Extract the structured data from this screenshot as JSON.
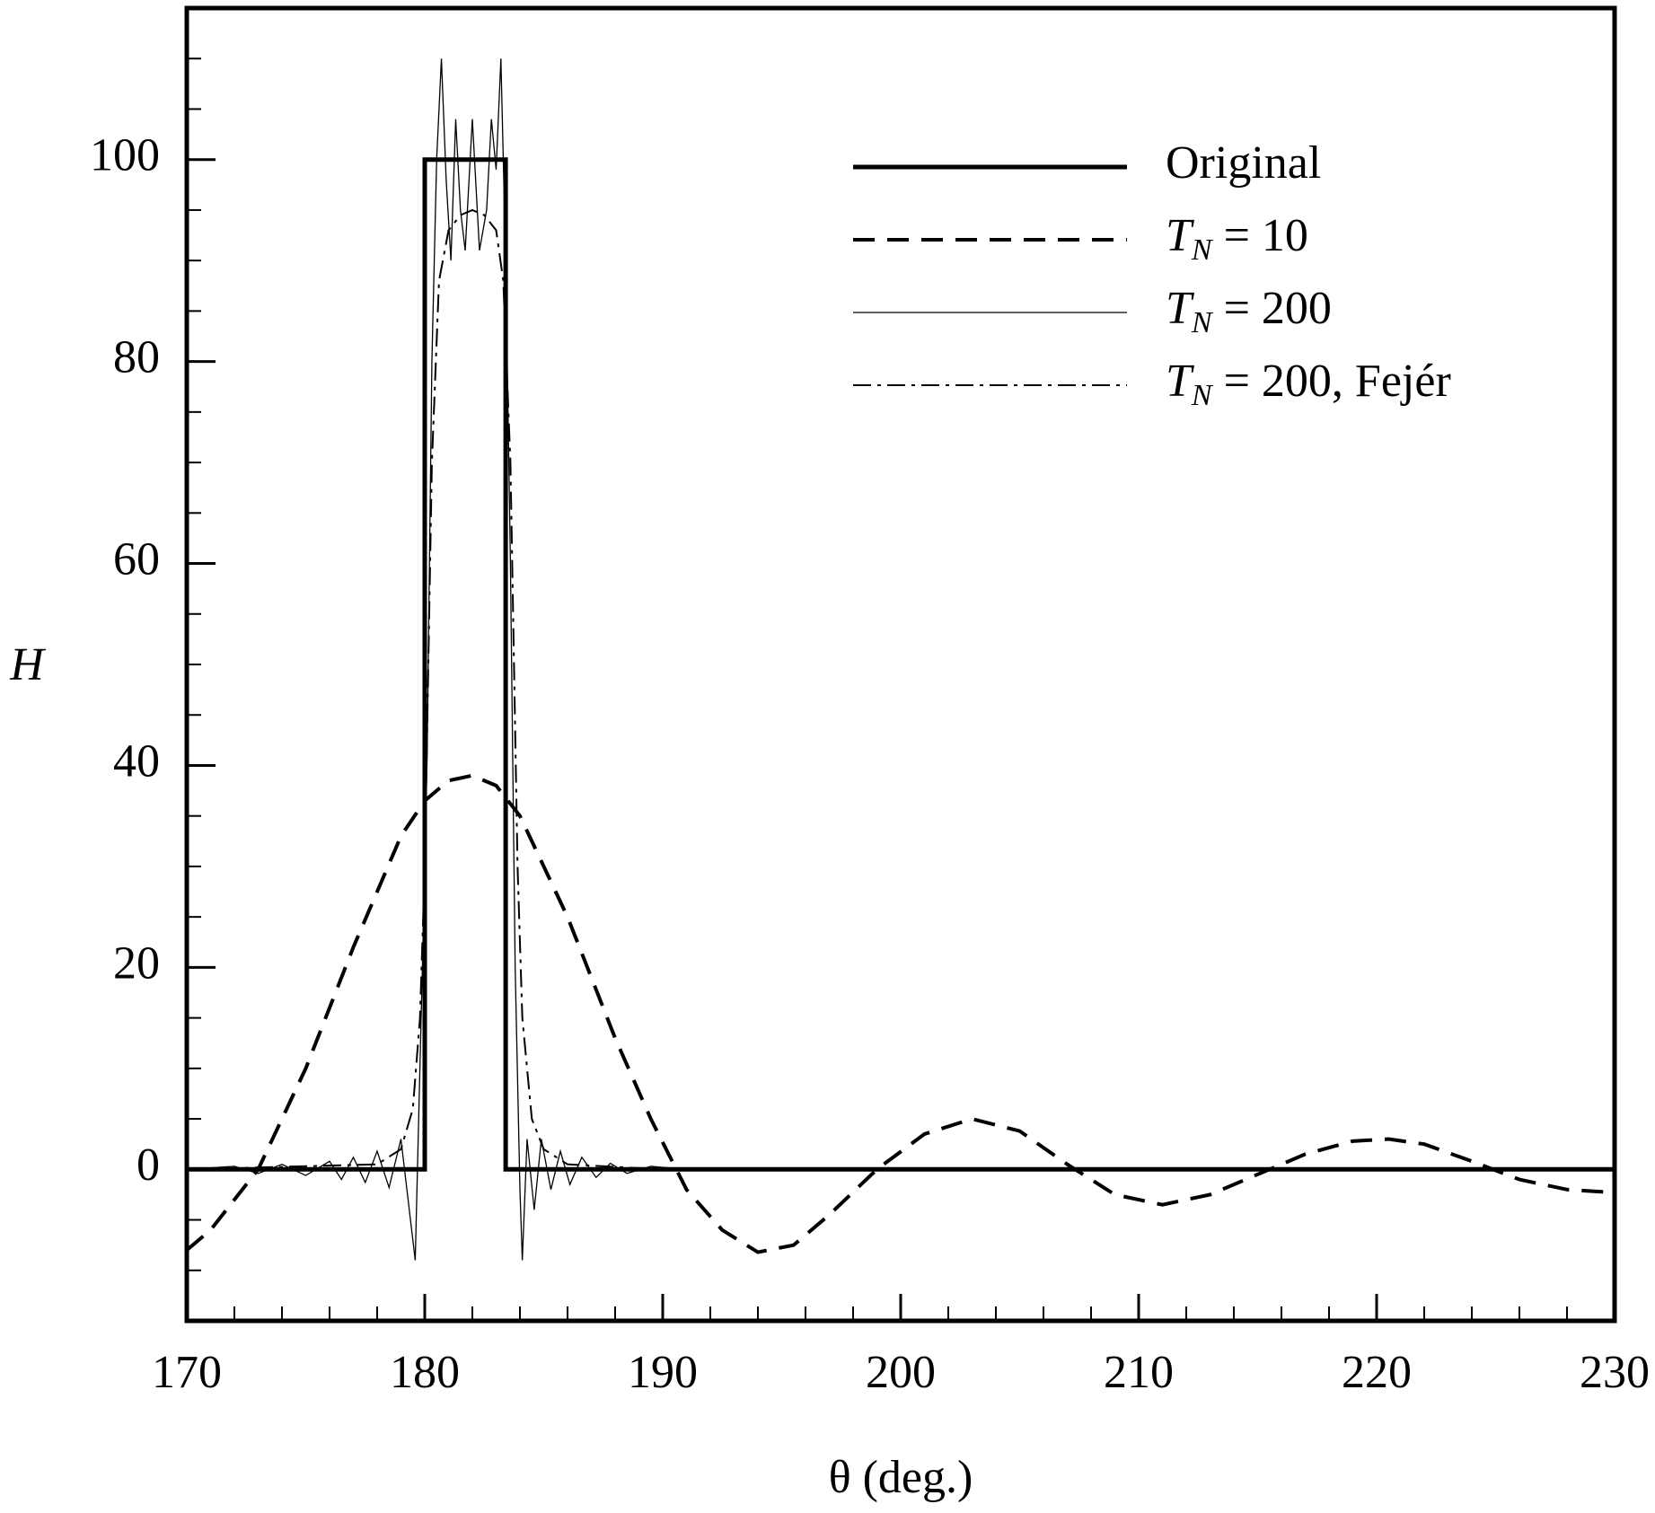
{
  "chart_data": {
    "type": "line",
    "xlabel": "θ (deg.)",
    "ylabel": "H",
    "xlim": [
      170,
      230
    ],
    "xticks": [
      170,
      180,
      190,
      200,
      210,
      220,
      230
    ],
    "xminorticks": [
      172,
      174,
      176,
      178,
      182,
      184,
      186,
      188,
      192,
      194,
      196,
      198,
      202,
      204,
      206,
      208,
      212,
      214,
      216,
      218,
      222,
      224,
      226,
      228
    ],
    "ylim": [
      -15,
      115
    ],
    "yticks": [
      0,
      20,
      40,
      60,
      80,
      100
    ],
    "yminorticks": [
      -10,
      -5,
      5,
      10,
      15,
      25,
      30,
      35,
      45,
      50,
      55,
      65,
      70,
      75,
      85,
      90,
      95,
      105,
      110
    ],
    "legend": "upper right",
    "series": [
      {
        "name": "Original",
        "color": "#000000",
        "linestyle": "solid",
        "linewidth": 5,
        "x": [
          170,
          180,
          180,
          183.4,
          183.4,
          230
        ],
        "values": [
          0,
          0,
          100,
          100,
          0,
          0
        ]
      },
      {
        "name": "TN = 10",
        "color": "#000000",
        "linestyle": "dashed",
        "linewidth": 4,
        "x": [
          170,
          171,
          173,
          175,
          177,
          179,
          180,
          181,
          182,
          183,
          184,
          186,
          188,
          189.5,
          191,
          192.5,
          194,
          195.5,
          197,
          199,
          201,
          203,
          205,
          207,
          209,
          211,
          213,
          215,
          217,
          219,
          220.5,
          222,
          224,
          226,
          228,
          230
        ],
        "values": [
          -8,
          -6,
          0,
          10,
          22,
          33,
          36.5,
          38.5,
          39,
          38,
          35,
          25,
          13,
          5,
          -2,
          -6,
          -8.2,
          -7.5,
          -4.5,
          0,
          3.5,
          5,
          3.8,
          0.5,
          -2.5,
          -3.5,
          -2.5,
          -0.5,
          1.5,
          2.8,
          3,
          2.5,
          0.8,
          -1,
          -2,
          -2.3
        ]
      },
      {
        "name": "TN = 200",
        "color": "#000000",
        "linestyle": "solid",
        "linewidth": 1.3,
        "x": [
          170,
          172,
          173,
          174,
          175,
          176,
          176.5,
          177,
          177.5,
          178,
          178.5,
          179,
          179.3,
          179.6,
          179.9,
          180.1,
          180.3,
          180.5,
          180.7,
          180.9,
          181.1,
          181.3,
          181.5,
          181.7,
          182,
          182.3,
          182.6,
          182.8,
          183,
          183.2,
          183.4,
          183.6,
          183.8,
          184,
          184.1,
          184.3,
          184.6,
          184.9,
          185.3,
          185.7,
          186.1,
          186.6,
          187.2,
          187.8,
          188.5,
          189.5,
          191,
          230
        ],
        "values": [
          0,
          0.3,
          -0.4,
          0.5,
          -0.6,
          0.8,
          -1,
          1.2,
          -1.3,
          1.8,
          -1.8,
          3,
          -3,
          -9,
          20,
          41,
          80,
          100,
          110,
          98,
          90,
          104,
          95,
          91,
          104,
          91,
          95,
          104,
          99,
          110,
          90,
          60,
          20,
          -2,
          -9,
          3,
          -4,
          3,
          -2,
          1.8,
          -1.5,
          1.2,
          -0.8,
          0.6,
          -0.4,
          0.3,
          0,
          0
        ]
      },
      {
        "name": "TN = 200, Fejér",
        "color": "#000000",
        "linestyle": "dashdot",
        "linewidth": 2,
        "x": [
          170,
          178,
          179,
          179.5,
          179.8,
          180,
          180.3,
          180.6,
          181,
          181.5,
          182,
          182.5,
          183,
          183.3,
          183.6,
          183.9,
          184.1,
          184.5,
          185,
          186,
          190,
          230
        ],
        "values": [
          0,
          0.5,
          2,
          6,
          15,
          30,
          70,
          88,
          93,
          94.5,
          95,
          94.5,
          93,
          88,
          70,
          30,
          15,
          5,
          2,
          0.5,
          0,
          0
        ]
      }
    ]
  }
}
